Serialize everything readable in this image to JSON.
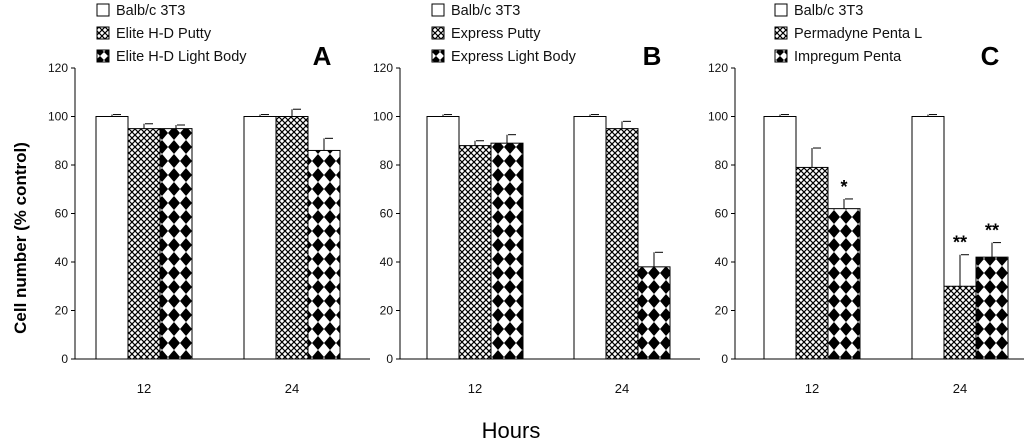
{
  "figure": {
    "ylabel": "Cell number (% control)",
    "xlabel": "Hours"
  },
  "chart_data": [
    {
      "type": "bar",
      "panel": "A",
      "categories": [
        "12",
        "24"
      ],
      "ylim": [
        0,
        120
      ],
      "yticks": [
        0,
        20,
        40,
        60,
        80,
        100,
        120
      ],
      "series": [
        {
          "name": "Balb/c 3T3",
          "pattern": "blank",
          "values": [
            100,
            100
          ],
          "errors": [
            0.8,
            0.8
          ]
        },
        {
          "name": "Elite H-D Putty",
          "pattern": "fine-check",
          "values": [
            95,
            100
          ],
          "errors": [
            2,
            3
          ]
        },
        {
          "name": "Elite H-D Light Body",
          "pattern": "diamond",
          "values": [
            95,
            86
          ],
          "errors": [
            1.5,
            5
          ]
        }
      ],
      "annotations": [
        [],
        []
      ]
    },
    {
      "type": "bar",
      "panel": "B",
      "categories": [
        "12",
        "24"
      ],
      "ylim": [
        0,
        120
      ],
      "yticks": [
        0,
        20,
        40,
        60,
        80,
        100,
        120
      ],
      "series": [
        {
          "name": "Balb/c 3T3",
          "pattern": "blank",
          "values": [
            100,
            100
          ],
          "errors": [
            0.8,
            0.8
          ]
        },
        {
          "name": "Express Putty",
          "pattern": "fine-check",
          "values": [
            88,
            95
          ],
          "errors": [
            2,
            3
          ]
        },
        {
          "name": "Express Light Body",
          "pattern": "diamond",
          "values": [
            89,
            38
          ],
          "errors": [
            3.5,
            6
          ]
        }
      ],
      "annotations": [
        [],
        []
      ]
    },
    {
      "type": "bar",
      "panel": "C",
      "categories": [
        "12",
        "24"
      ],
      "ylim": [
        0,
        120
      ],
      "yticks": [
        0,
        20,
        40,
        60,
        80,
        100,
        120
      ],
      "series": [
        {
          "name": "Balb/c 3T3",
          "pattern": "blank",
          "values": [
            100,
            100
          ],
          "errors": [
            0.8,
            0.8
          ]
        },
        {
          "name": "Permadyne Penta L",
          "pattern": "fine-check",
          "values": [
            79,
            30
          ],
          "errors": [
            8,
            13
          ]
        },
        {
          "name": "Impregum Penta",
          "pattern": "diamond",
          "values": [
            62,
            42
          ],
          "errors": [
            4,
            6
          ]
        }
      ],
      "annotations": [
        [
          "",
          "",
          "*"
        ],
        [
          "",
          "**",
          "**"
        ]
      ]
    }
  ]
}
